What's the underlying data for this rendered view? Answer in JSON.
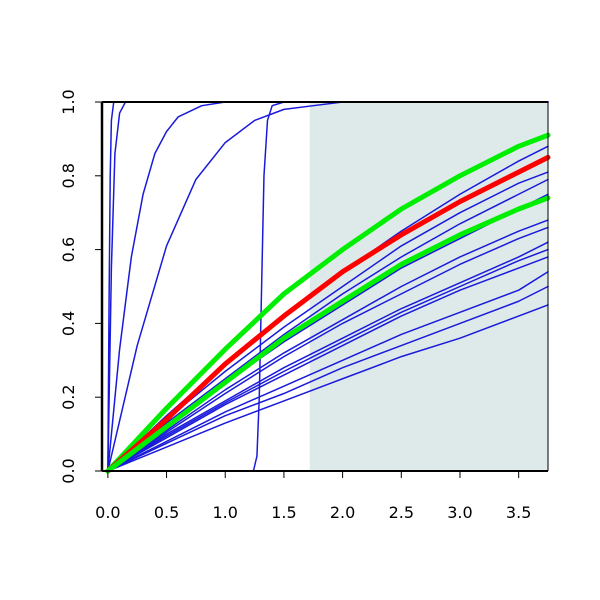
{
  "chart_data": {
    "type": "line",
    "title": "",
    "xlabel": "",
    "ylabel": "",
    "xlim": [
      -0.05,
      3.75
    ],
    "ylim": [
      0,
      1
    ],
    "x_ticks": [
      0.0,
      0.5,
      1.0,
      1.5,
      2.0,
      2.5,
      3.0,
      3.5
    ],
    "x_tick_labels": [
      "0.0",
      "0.5",
      "1.0",
      "1.5",
      "2.0",
      "2.5",
      "3.0",
      "3.5"
    ],
    "y_ticks": [
      0.0,
      0.2,
      0.4,
      0.6,
      0.8,
      1.0
    ],
    "y_tick_labels": [
      "0.0",
      "0.2",
      "0.4",
      "0.6",
      "0.8",
      "1.0"
    ],
    "grid": false,
    "legend": "none",
    "shaded_region": {
      "x": [
        1.72,
        3.75
      ],
      "y": [
        0,
        1
      ],
      "color": "#deeaea"
    },
    "series_color_default": "#1a1adb",
    "series": [
      {
        "color": "#1a1adb",
        "width": 1.5,
        "x": [
          0,
          0.01,
          0.02,
          0.03,
          0.05,
          3.75
        ],
        "y": [
          0,
          0.45,
          0.8,
          0.95,
          1.0,
          1.0
        ]
      },
      {
        "color": "#1a1adb",
        "width": 1.5,
        "x": [
          0,
          0.03,
          0.06,
          0.1,
          0.15,
          3.75
        ],
        "y": [
          0,
          0.55,
          0.86,
          0.97,
          1.0,
          1.0
        ]
      },
      {
        "color": "#1a1adb",
        "width": 1.5,
        "x": [
          0,
          0.1,
          0.2,
          0.3,
          0.4,
          0.5,
          0.6,
          0.8,
          1.0,
          3.75
        ],
        "y": [
          0,
          0.33,
          0.58,
          0.75,
          0.86,
          0.92,
          0.96,
          0.99,
          1.0,
          1.0
        ]
      },
      {
        "color": "#1a1adb",
        "width": 1.5,
        "x": [
          0,
          0.25,
          0.5,
          0.75,
          1.0,
          1.25,
          1.5,
          1.75,
          2.0,
          3.75
        ],
        "y": [
          0,
          0.34,
          0.61,
          0.79,
          0.89,
          0.95,
          0.98,
          0.99,
          1.0,
          1.0
        ]
      },
      {
        "color": "#1a1adb",
        "width": 1.5,
        "x": [
          0,
          1.24,
          1.27,
          1.29,
          1.31,
          1.33,
          1.36,
          1.4,
          1.5,
          3.75
        ],
        "y": [
          0,
          0.0,
          0.04,
          0.2,
          0.5,
          0.8,
          0.95,
          0.99,
          1.0,
          1.0
        ]
      },
      {
        "color": "#1a1adb",
        "width": 1.5,
        "x": [
          0,
          0.5,
          1.0,
          1.5,
          2.0,
          2.5,
          3.0,
          3.5,
          3.75
        ],
        "y": [
          0,
          0.15,
          0.29,
          0.42,
          0.54,
          0.65,
          0.75,
          0.84,
          0.88
        ]
      },
      {
        "color": "#1a1adb",
        "width": 1.5,
        "x": [
          0,
          0.5,
          1.0,
          1.5,
          2.0,
          2.5,
          3.0,
          3.5,
          3.75
        ],
        "y": [
          0,
          0.14,
          0.27,
          0.39,
          0.5,
          0.61,
          0.7,
          0.78,
          0.81
        ]
      },
      {
        "color": "#1a1adb",
        "width": 1.5,
        "x": [
          0,
          0.5,
          1.0,
          1.5,
          2.0,
          2.5,
          3.0,
          3.5,
          3.75
        ],
        "y": [
          0,
          0.13,
          0.25,
          0.37,
          0.48,
          0.58,
          0.67,
          0.75,
          0.79
        ]
      },
      {
        "color": "#1a1adb",
        "width": 1.5,
        "x": [
          0,
          0.5,
          1.0,
          1.5,
          2.0,
          2.5,
          3.0,
          3.5,
          3.75
        ],
        "y": [
          0,
          0.12,
          0.24,
          0.35,
          0.45,
          0.55,
          0.63,
          0.71,
          0.75
        ]
      },
      {
        "color": "#1a1adb",
        "width": 1.5,
        "x": [
          0,
          0.5,
          1.0,
          1.5,
          2.0,
          2.5,
          3.0,
          3.5,
          3.75
        ],
        "y": [
          0,
          0.11,
          0.22,
          0.32,
          0.41,
          0.5,
          0.58,
          0.65,
          0.68
        ]
      },
      {
        "color": "#1a1adb",
        "width": 1.5,
        "x": [
          0,
          0.5,
          1.0,
          1.5,
          2.0,
          2.5,
          3.0,
          3.5,
          3.75
        ],
        "y": [
          0,
          0.105,
          0.21,
          0.31,
          0.4,
          0.48,
          0.56,
          0.63,
          0.66
        ]
      },
      {
        "color": "#1a1adb",
        "width": 1.5,
        "x": [
          0,
          0.5,
          1.0,
          1.5,
          2.0,
          2.5,
          3.0,
          3.5,
          3.75
        ],
        "y": [
          0,
          0.1,
          0.19,
          0.28,
          0.36,
          0.44,
          0.51,
          0.58,
          0.62
        ]
      },
      {
        "color": "#1a1adb",
        "width": 1.5,
        "x": [
          0,
          0.5,
          1.0,
          1.5,
          2.0,
          2.5,
          3.0,
          3.5,
          3.75
        ],
        "y": [
          0,
          0.095,
          0.185,
          0.27,
          0.35,
          0.43,
          0.5,
          0.57,
          0.6
        ]
      },
      {
        "color": "#1a1adb",
        "width": 1.5,
        "x": [
          0,
          0.5,
          1.0,
          1.5,
          2.0,
          2.5,
          3.0,
          3.5,
          3.75
        ],
        "y": [
          0,
          0.09,
          0.18,
          0.26,
          0.34,
          0.42,
          0.49,
          0.55,
          0.58
        ]
      },
      {
        "color": "#1a1adb",
        "width": 1.5,
        "x": [
          0,
          0.5,
          1.0,
          1.5,
          2.0,
          2.5,
          3.0,
          3.5,
          3.75
        ],
        "y": [
          0,
          0.08,
          0.16,
          0.23,
          0.3,
          0.37,
          0.43,
          0.49,
          0.54
        ]
      },
      {
        "color": "#1a1adb",
        "width": 1.5,
        "x": [
          0,
          0.5,
          1.0,
          1.5,
          2.0,
          2.5,
          3.0,
          3.5,
          3.75
        ],
        "y": [
          0,
          0.075,
          0.15,
          0.21,
          0.28,
          0.34,
          0.4,
          0.46,
          0.5
        ]
      },
      {
        "color": "#1a1adb",
        "width": 1.5,
        "x": [
          0,
          0.5,
          1.0,
          1.5,
          2.0,
          2.5,
          3.0,
          3.5,
          3.75
        ],
        "y": [
          0,
          0.065,
          0.13,
          0.19,
          0.25,
          0.31,
          0.36,
          0.42,
          0.45
        ]
      },
      {
        "color": "#00ee00",
        "width": 5,
        "x": [
          0,
          0.5,
          1.0,
          1.5,
          2.0,
          2.5,
          3.0,
          3.5,
          3.75
        ],
        "y": [
          0,
          0.17,
          0.33,
          0.48,
          0.6,
          0.71,
          0.8,
          0.88,
          0.91
        ]
      },
      {
        "color": "#ff0000",
        "width": 5,
        "x": [
          0,
          0.5,
          1.0,
          1.5,
          2.0,
          2.5,
          3.0,
          3.5,
          3.75
        ],
        "y": [
          0,
          0.14,
          0.29,
          0.42,
          0.54,
          0.64,
          0.73,
          0.81,
          0.85
        ]
      },
      {
        "color": "#00ee00",
        "width": 5,
        "x": [
          0,
          0.5,
          1.0,
          1.5,
          2.0,
          2.5,
          3.0,
          3.5,
          3.75
        ],
        "y": [
          0,
          0.12,
          0.24,
          0.36,
          0.46,
          0.56,
          0.64,
          0.71,
          0.74
        ]
      }
    ]
  }
}
